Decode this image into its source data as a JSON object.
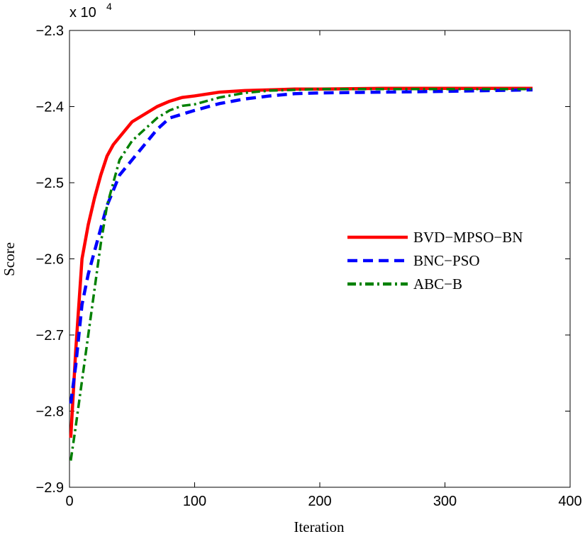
{
  "chart_data": {
    "type": "line",
    "x_label": "Iteration",
    "y_label": "Score",
    "y_multiplier": "x 10",
    "y_multiplier_exponent": "4",
    "xlim": [
      0,
      400
    ],
    "xticks": [
      0,
      100,
      200,
      300,
      400
    ],
    "ylim": [
      -2.9,
      -2.3
    ],
    "yticks": [
      {
        "value": -2.9,
        "label": "−2.9"
      },
      {
        "value": -2.8,
        "label": "−2.8"
      },
      {
        "value": -2.7,
        "label": "−2.7"
      },
      {
        "value": -2.6,
        "label": "−2.6"
      },
      {
        "value": -2.5,
        "label": "−2.5"
      },
      {
        "value": -2.4,
        "label": "−2.4"
      },
      {
        "value": -2.3,
        "label": "−2.3"
      }
    ],
    "legend": "right",
    "x": [
      1,
      5,
      10,
      15,
      20,
      25,
      30,
      35,
      40,
      50,
      60,
      70,
      80,
      90,
      100,
      120,
      140,
      160,
      180,
      200,
      250,
      300,
      370
    ],
    "series": [
      {
        "name": "BVD−MPSO−BN",
        "color": "#ff0000",
        "linestyle": "solid",
        "values": [
          -2.835,
          -2.72,
          -2.6,
          -2.555,
          -2.52,
          -2.49,
          -2.465,
          -2.45,
          -2.44,
          -2.42,
          -2.41,
          -2.4,
          -2.393,
          -2.388,
          -2.386,
          -2.381,
          -2.379,
          -2.378,
          -2.377,
          -2.377,
          -2.376,
          -2.376,
          -2.376
        ]
      },
      {
        "name": "BNC−PSO",
        "color": "#0000ff",
        "linestyle": "dashed",
        "values": [
          -2.79,
          -2.74,
          -2.66,
          -2.62,
          -2.59,
          -2.56,
          -2.53,
          -2.51,
          -2.49,
          -2.47,
          -2.45,
          -2.43,
          -2.415,
          -2.41,
          -2.405,
          -2.396,
          -2.39,
          -2.386,
          -2.383,
          -2.382,
          -2.381,
          -2.38,
          -2.378
        ]
      },
      {
        "name": "ABC−B",
        "color": "#008000",
        "linestyle": "dashdot",
        "values": [
          -2.865,
          -2.82,
          -2.76,
          -2.7,
          -2.64,
          -2.58,
          -2.53,
          -2.5,
          -2.47,
          -2.445,
          -2.43,
          -2.415,
          -2.405,
          -2.399,
          -2.397,
          -2.388,
          -2.382,
          -2.379,
          -2.378,
          -2.377,
          -2.377,
          -2.377,
          -2.377
        ]
      }
    ]
  }
}
